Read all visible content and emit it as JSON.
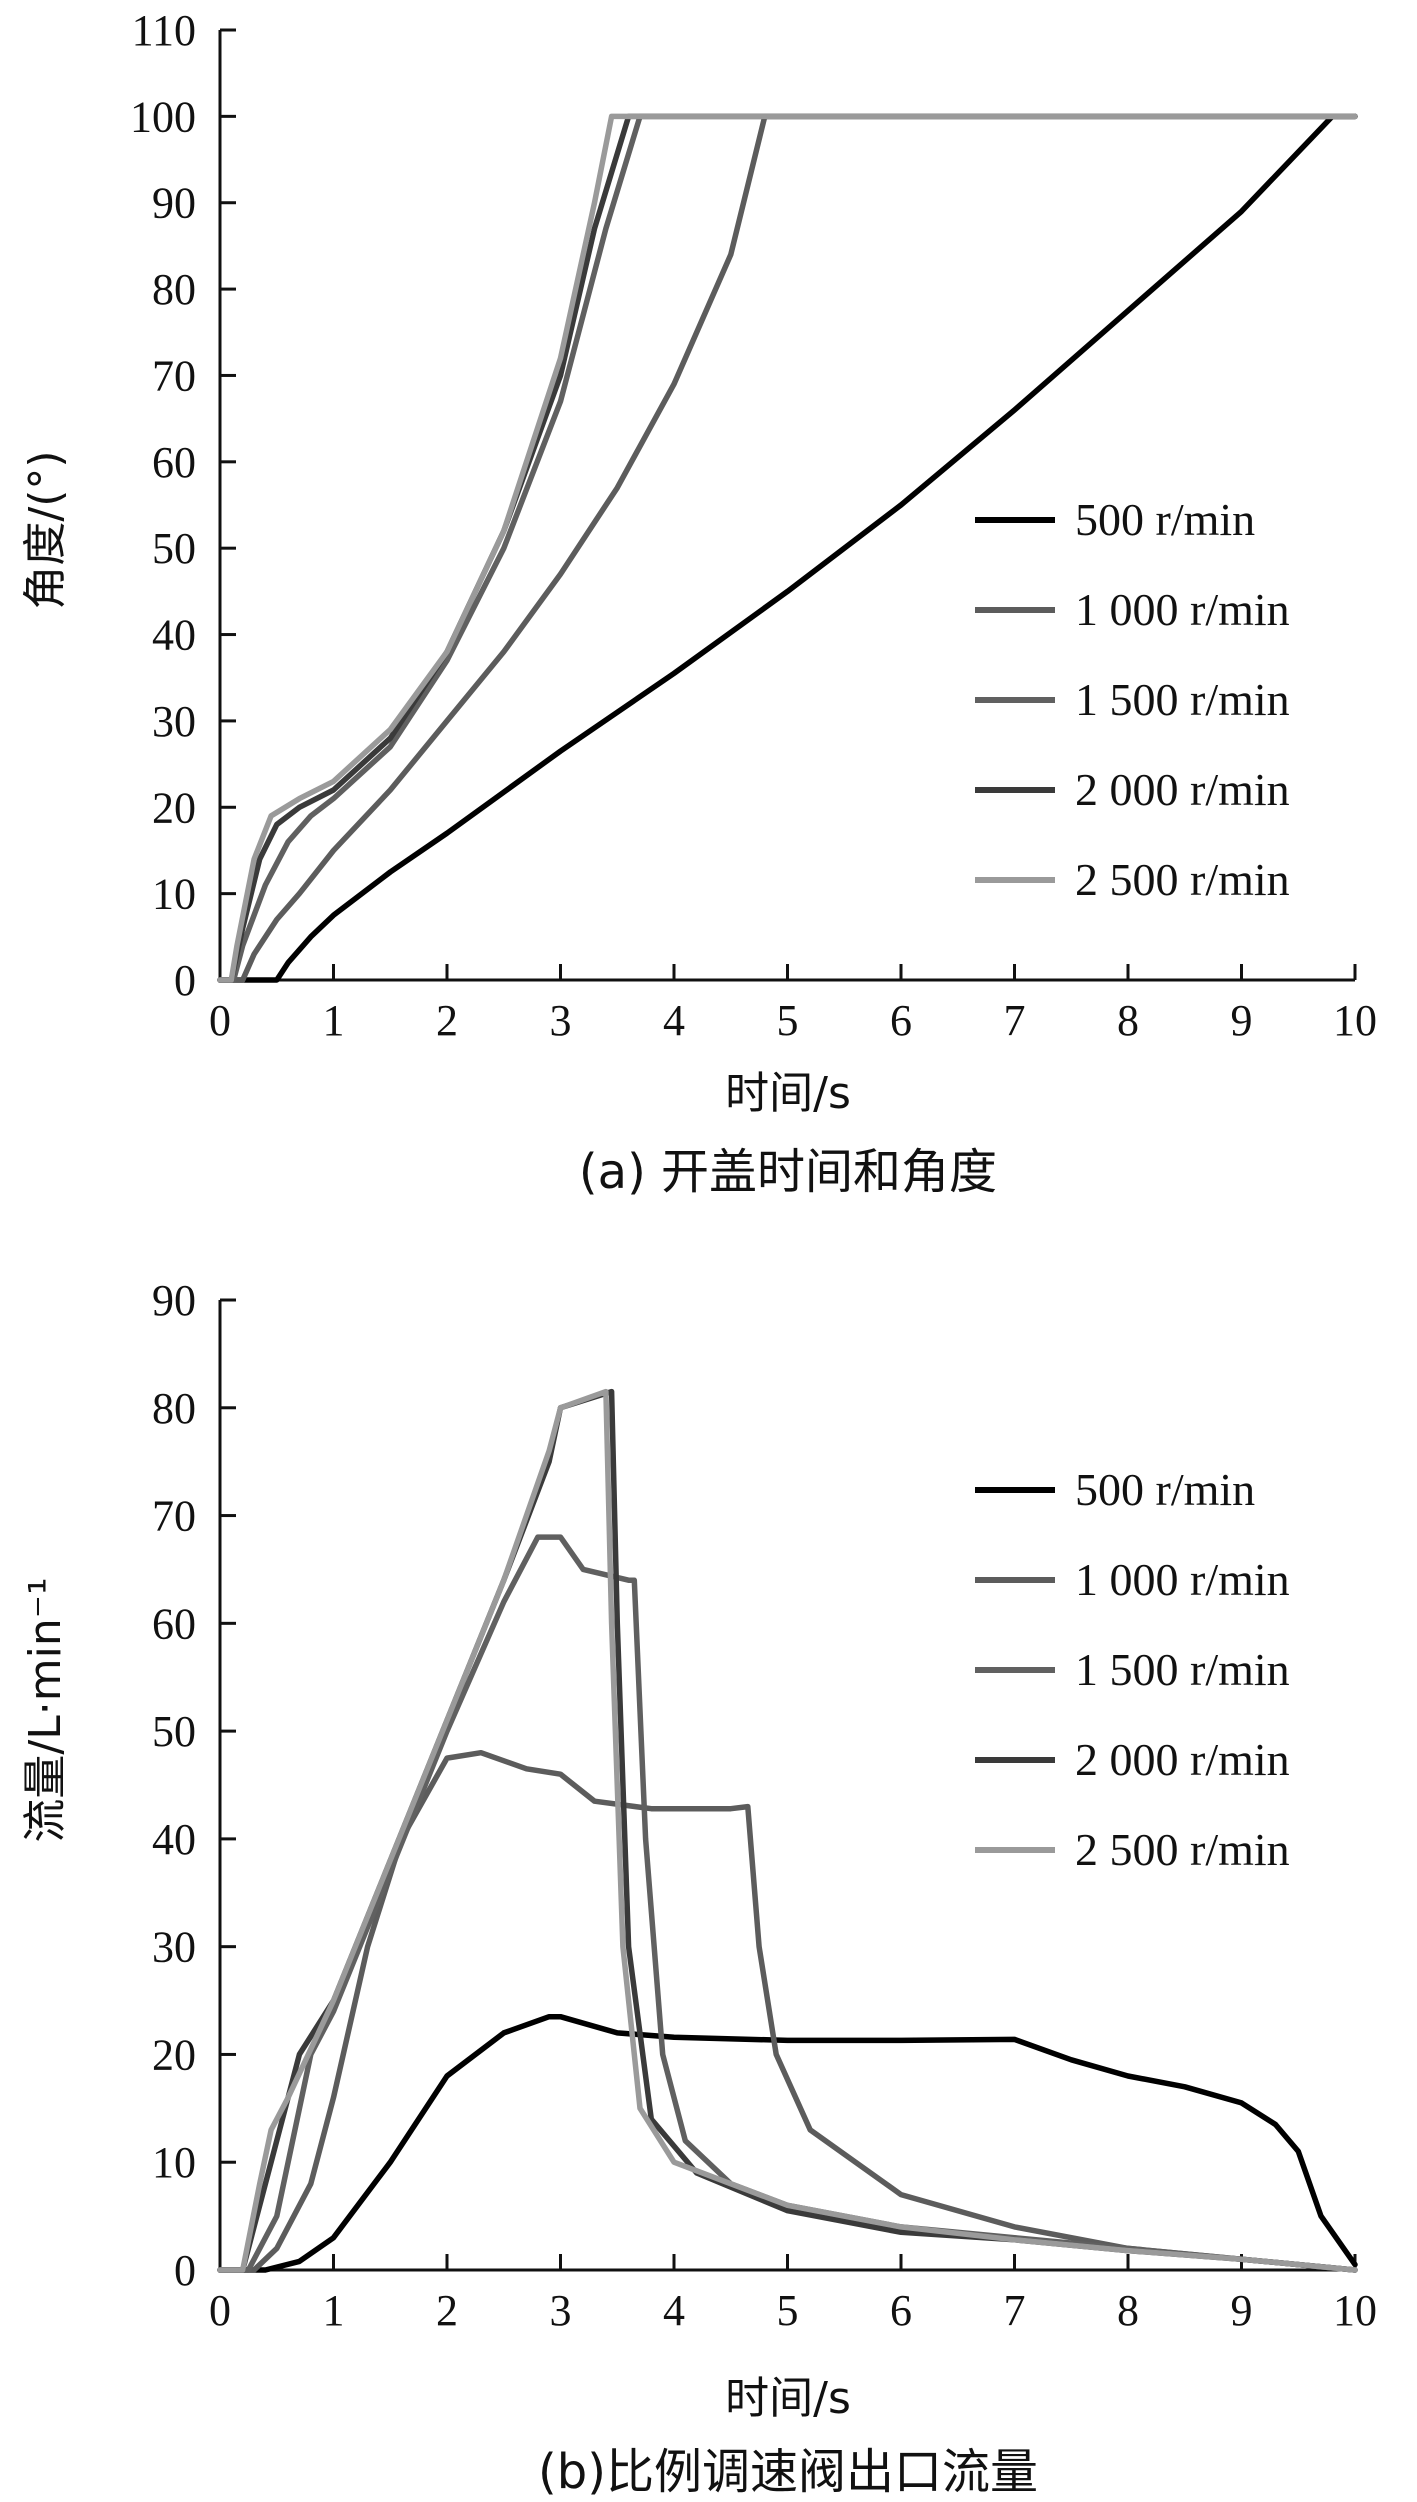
{
  "chart_data": [
    {
      "id": "a",
      "type": "line",
      "caption": "(a) 开盖时间和角度",
      "xlabel": "时间/s",
      "ylabel": "角度/(°)",
      "xlim": [
        0,
        10
      ],
      "ylim": [
        0,
        110
      ],
      "xticks": [
        0,
        1,
        2,
        3,
        4,
        5,
        6,
        7,
        8,
        9,
        10
      ],
      "yticks": [
        0,
        10,
        20,
        30,
        40,
        50,
        60,
        70,
        80,
        90,
        100,
        110
      ],
      "legend_position": "right",
      "series": [
        {
          "name": "500 r/min",
          "color": "#000000",
          "points": [
            [
              0,
              0
            ],
            [
              0.5,
              0
            ],
            [
              0.6,
              2
            ],
            [
              0.8,
              5
            ],
            [
              1.0,
              7.5
            ],
            [
              1.5,
              12.5
            ],
            [
              2,
              17
            ],
            [
              3,
              26.5
            ],
            [
              4,
              35.5
            ],
            [
              5,
              45
            ],
            [
              6,
              55
            ],
            [
              7,
              66
            ],
            [
              8,
              77.5
            ],
            [
              9,
              89
            ],
            [
              9.8,
              100
            ],
            [
              10,
              100
            ]
          ]
        },
        {
          "name": "1 000 r/min",
          "color": "#5c5c5c",
          "points": [
            [
              0,
              0
            ],
            [
              0.2,
              0
            ],
            [
              0.3,
              3
            ],
            [
              0.5,
              7
            ],
            [
              0.7,
              10
            ],
            [
              1.0,
              15
            ],
            [
              1.5,
              22
            ],
            [
              2,
              30
            ],
            [
              2.5,
              38
            ],
            [
              3,
              47
            ],
            [
              3.5,
              57
            ],
            [
              4,
              69
            ],
            [
              4.5,
              84
            ],
            [
              4.8,
              100
            ],
            [
              10,
              100
            ]
          ]
        },
        {
          "name": "1 500 r/min",
          "color": "#606060",
          "points": [
            [
              0,
              0
            ],
            [
              0.12,
              0
            ],
            [
              0.2,
              4
            ],
            [
              0.4,
              11
            ],
            [
              0.6,
              16
            ],
            [
              0.8,
              19
            ],
            [
              1.0,
              21
            ],
            [
              1.5,
              27
            ],
            [
              2,
              37
            ],
            [
              2.5,
              50
            ],
            [
              3,
              67
            ],
            [
              3.4,
              87
            ],
            [
              3.7,
              100
            ],
            [
              10,
              100
            ]
          ]
        },
        {
          "name": "2 000 r/min",
          "color": "#3a3a3a",
          "points": [
            [
              0,
              0
            ],
            [
              0.1,
              0
            ],
            [
              0.2,
              6
            ],
            [
              0.35,
              14
            ],
            [
              0.5,
              18
            ],
            [
              0.7,
              20
            ],
            [
              1.0,
              22
            ],
            [
              1.5,
              28
            ],
            [
              2,
              38
            ],
            [
              2.5,
              52
            ],
            [
              3,
              70
            ],
            [
              3.3,
              87
            ],
            [
              3.6,
              100
            ],
            [
              10,
              100
            ]
          ]
        },
        {
          "name": "2 500 r/min",
          "color": "#9a9a9a",
          "points": [
            [
              0,
              0
            ],
            [
              0.1,
              0
            ],
            [
              0.15,
              4
            ],
            [
              0.3,
              14
            ],
            [
              0.45,
              19
            ],
            [
              0.7,
              21
            ],
            [
              1.0,
              23
            ],
            [
              1.5,
              29
            ],
            [
              2,
              38
            ],
            [
              2.5,
              52
            ],
            [
              3,
              72
            ],
            [
              3.3,
              90
            ],
            [
              3.45,
              100
            ],
            [
              10,
              100
            ]
          ]
        }
      ]
    },
    {
      "id": "b",
      "type": "line",
      "caption": "(b)比例调速阀出口流量",
      "xlabel": "时间/s",
      "ylabel": "流量/L·min⁻¹",
      "xlim": [
        0,
        10
      ],
      "ylim": [
        0,
        90
      ],
      "xticks": [
        0,
        1,
        2,
        3,
        4,
        5,
        6,
        7,
        8,
        9,
        10
      ],
      "yticks": [
        0,
        10,
        20,
        30,
        40,
        50,
        60,
        70,
        80,
        90
      ],
      "legend_position": "right",
      "series": [
        {
          "name": "500 r/min",
          "color": "#000000",
          "points": [
            [
              0,
              0
            ],
            [
              0.4,
              0
            ],
            [
              0.7,
              0.8
            ],
            [
              1.0,
              3
            ],
            [
              1.5,
              10
            ],
            [
              2,
              18
            ],
            [
              2.5,
              22
            ],
            [
              2.9,
              23.5
            ],
            [
              3.0,
              23.5
            ],
            [
              3.5,
              22
            ],
            [
              4,
              21.6
            ],
            [
              5,
              21.3
            ],
            [
              6,
              21.3
            ],
            [
              7,
              21.4
            ],
            [
              7.5,
              19.5
            ],
            [
              8,
              18
            ],
            [
              8.5,
              17
            ],
            [
              9,
              15.5
            ],
            [
              9.3,
              13.5
            ],
            [
              9.5,
              11
            ],
            [
              9.7,
              5
            ],
            [
              10,
              0.5
            ]
          ]
        },
        {
          "name": "1 000 r/min",
          "color": "#5c5c5c",
          "points": [
            [
              0,
              0
            ],
            [
              0.3,
              0
            ],
            [
              0.5,
              2
            ],
            [
              0.8,
              8
            ],
            [
              1.0,
              16
            ],
            [
              1.3,
              30
            ],
            [
              1.6,
              40
            ],
            [
              2.0,
              47.5
            ],
            [
              2.3,
              48
            ],
            [
              2.7,
              46.5
            ],
            [
              3.0,
              46
            ],
            [
              3.3,
              43.5
            ],
            [
              3.8,
              42.8
            ],
            [
              4.5,
              42.8
            ],
            [
              4.65,
              43
            ],
            [
              4.75,
              30
            ],
            [
              4.9,
              20
            ],
            [
              5.2,
              13
            ],
            [
              6,
              7
            ],
            [
              7,
              4
            ],
            [
              8,
              2
            ],
            [
              9,
              1
            ],
            [
              10,
              0
            ]
          ]
        },
        {
          "name": "1 500 r/min",
          "color": "#606060",
          "points": [
            [
              0,
              0
            ],
            [
              0.25,
              0
            ],
            [
              0.5,
              5
            ],
            [
              0.8,
              20
            ],
            [
              1.0,
              24
            ],
            [
              1.5,
              37
            ],
            [
              2,
              50
            ],
            [
              2.5,
              62
            ],
            [
              2.8,
              68
            ],
            [
              3.0,
              68
            ],
            [
              3.2,
              65
            ],
            [
              3.6,
              64
            ],
            [
              3.65,
              64
            ],
            [
              3.75,
              40
            ],
            [
              3.9,
              20
            ],
            [
              4.1,
              12
            ],
            [
              4.5,
              8
            ],
            [
              5,
              6
            ],
            [
              6,
              4
            ],
            [
              7,
              3
            ],
            [
              8,
              2
            ],
            [
              9,
              1
            ],
            [
              10,
              0
            ]
          ]
        },
        {
          "name": "2 000 r/min",
          "color": "#3a3a3a",
          "points": [
            [
              0,
              0
            ],
            [
              0.2,
              0
            ],
            [
              0.4,
              8
            ],
            [
              0.6,
              16
            ],
            [
              0.7,
              20
            ],
            [
              1.0,
              25
            ],
            [
              1.5,
              38
            ],
            [
              2,
              51
            ],
            [
              2.5,
              64
            ],
            [
              2.9,
              75
            ],
            [
              3.0,
              80
            ],
            [
              3.45,
              81.5
            ],
            [
              3.5,
              60
            ],
            [
              3.6,
              30
            ],
            [
              3.8,
              14
            ],
            [
              4.2,
              9
            ],
            [
              5,
              5.5
            ],
            [
              6,
              3.5
            ],
            [
              7,
              2.8
            ],
            [
              8,
              1.8
            ],
            [
              9,
              1
            ],
            [
              10,
              0
            ]
          ]
        },
        {
          "name": "2 500 r/min",
          "color": "#9a9a9a",
          "points": [
            [
              0,
              0
            ],
            [
              0.2,
              0
            ],
            [
              0.35,
              8
            ],
            [
              0.45,
              13
            ],
            [
              0.6,
              16
            ],
            [
              1.0,
              25
            ],
            [
              1.5,
              38
            ],
            [
              2,
              51
            ],
            [
              2.5,
              64
            ],
            [
              2.9,
              76
            ],
            [
              3.0,
              80
            ],
            [
              3.4,
              81.5
            ],
            [
              3.45,
              60
            ],
            [
              3.55,
              30
            ],
            [
              3.7,
              15
            ],
            [
              4.0,
              10
            ],
            [
              5,
              6
            ],
            [
              6,
              4
            ],
            [
              7,
              2.8
            ],
            [
              8,
              1.8
            ],
            [
              9,
              1
            ],
            [
              10,
              0
            ]
          ]
        }
      ]
    }
  ]
}
